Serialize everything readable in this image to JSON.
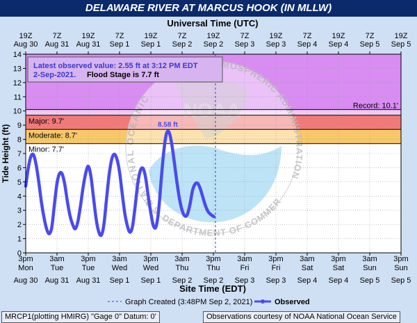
{
  "title": "DELAWARE RIVER AT MARCUS HOOK (IN MLLW)",
  "top_axis_title": "Universal Time (UTC)",
  "bottom_axis_title": "Site Time (EDT)",
  "ylabel": "Tide Height (ft)",
  "info_box": {
    "observed_line": "Latest observed value: 2.55 ft at 3:12 PM EDT",
    "date": "2-Sep-2021.",
    "flood_stage": "Flood Stage is 7.7 ft"
  },
  "legend": {
    "graph_created": "Graph Created (3:48PM Sep 2, 2021)",
    "observed": "Observed"
  },
  "footer": {
    "left": "MRCP1(plotting HMIRG) \"Gage 0\" Datum: 0'",
    "right": "Observations courtesy of NOAA National Ocean Service"
  },
  "watermark": {
    "left_arc": "NATIONAL OCEANIC",
    "right_arc": "ATMOSPHERIC ADMINISTRATION",
    "bottom_arc": "U.S. DEPARTMENT OF COMMERCE",
    "logo": "NOAA"
  },
  "colors": {
    "record": "#d98cf2",
    "major": "#f2c9f2",
    "moderate": "#f07a7a",
    "minor": "#f7c86a",
    "observed": "#4a4af0",
    "background": "#cfe0f5",
    "plot_bg": "#ffffff"
  },
  "chart_data": {
    "type": "line",
    "ylim": [
      0,
      14
    ],
    "yticks": [
      0,
      1,
      2,
      3,
      4,
      5,
      6,
      7,
      8,
      9,
      10,
      11,
      12,
      13,
      14
    ],
    "x_range_hours_labels": "Aug 30 3pm EDT to Sep 5 3pm EDT",
    "bottom_ticks": [
      [
        "3pm",
        "Mon",
        "Aug 30"
      ],
      [
        "3am",
        "Tue",
        "Aug 31"
      ],
      [
        "3pm",
        "Tue",
        "Aug 31"
      ],
      [
        "3am",
        "Wed",
        "Sep 1"
      ],
      [
        "3pm",
        "Wed",
        "Sep 1"
      ],
      [
        "3am",
        "Thu",
        "Sep 2"
      ],
      [
        "3pm",
        "Thu",
        "Sep 2"
      ],
      [
        "3am",
        "Fri",
        "Sep 3"
      ],
      [
        "3pm",
        "Fri",
        "Sep 3"
      ],
      [
        "3am",
        "Sat",
        "Sep 4"
      ],
      [
        "3pm",
        "Sat",
        "Sep 4"
      ],
      [
        "3am",
        "Sun",
        "Sep 5"
      ],
      [
        "3pm",
        "Sun",
        "Sep 5"
      ]
    ],
    "top_ticks": [
      [
        "19Z",
        "Aug 30"
      ],
      [
        "7Z",
        "Aug 31"
      ],
      [
        "19Z",
        "Aug 31"
      ],
      [
        "7Z",
        "Sep 1"
      ],
      [
        "19Z",
        "Sep 1"
      ],
      [
        "7Z",
        "Sep 2"
      ],
      [
        "19Z",
        "Sep 2"
      ],
      [
        "7Z",
        "Sep 3"
      ],
      [
        "19Z",
        "Sep 3"
      ],
      [
        "7Z",
        "Sep 4"
      ],
      [
        "19Z",
        "Sep 4"
      ],
      [
        "7Z",
        "Sep 5"
      ],
      [
        "19Z",
        "Sep 5"
      ]
    ],
    "thresholds": [
      {
        "label": "Major: 9.7'",
        "value": 9.7
      },
      {
        "label": "Moderate: 8.7'",
        "value": 8.7
      },
      {
        "label": "Minor: 7.7'",
        "value": 7.7
      },
      {
        "label": "Record: 10.1'",
        "value": 10.1
      }
    ],
    "peak_label": "8.58 ft",
    "peak": {
      "x": "2021-09-01 21:30",
      "y": 8.58
    },
    "graph_created": "2021-09-02 15:48",
    "series": [
      {
        "name": "Observed",
        "points": [
          [
            "2021-08-30 15:00",
            4.7
          ],
          [
            "2021-08-30 16:00",
            6.0
          ],
          [
            "2021-08-30 17:00",
            6.8
          ],
          [
            "2021-08-30 18:00",
            6.9
          ],
          [
            "2021-08-30 19:00",
            6.2
          ],
          [
            "2021-08-30 20:00",
            5.0
          ],
          [
            "2021-08-30 21:00",
            3.6
          ],
          [
            "2021-08-30 22:00",
            2.5
          ],
          [
            "2021-08-30 23:00",
            1.7
          ],
          [
            "2021-08-31 00:00",
            1.35
          ],
          [
            "2021-08-31 01:00",
            1.8
          ],
          [
            "2021-08-31 02:00",
            3.4
          ],
          [
            "2021-08-31 03:00",
            4.9
          ],
          [
            "2021-08-31 04:00",
            5.6
          ],
          [
            "2021-08-31 05:00",
            5.55
          ],
          [
            "2021-08-31 06:00",
            4.8
          ],
          [
            "2021-08-31 07:00",
            3.6
          ],
          [
            "2021-08-31 08:00",
            2.6
          ],
          [
            "2021-08-31 09:00",
            2.0
          ],
          [
            "2021-08-31 10:00",
            1.7
          ],
          [
            "2021-08-31 11:00",
            2.2
          ],
          [
            "2021-08-31 12:00",
            3.3
          ],
          [
            "2021-08-31 13:00",
            4.6
          ],
          [
            "2021-08-31 14:00",
            5.6
          ],
          [
            "2021-08-31 15:00",
            6.1
          ],
          [
            "2021-08-31 16:00",
            5.4
          ],
          [
            "2021-08-31 17:00",
            3.9
          ],
          [
            "2021-08-31 18:00",
            2.4
          ],
          [
            "2021-08-31 19:00",
            1.5
          ],
          [
            "2021-08-31 20:00",
            1.25
          ],
          [
            "2021-08-31 21:00",
            2.0
          ],
          [
            "2021-08-31 22:00",
            3.8
          ],
          [
            "2021-08-31 23:00",
            5.5
          ],
          [
            "2021-09-01 00:00",
            6.6
          ],
          [
            "2021-09-01 01:00",
            6.95
          ],
          [
            "2021-09-01 02:00",
            6.6
          ],
          [
            "2021-09-01 03:00",
            5.7
          ],
          [
            "2021-09-01 04:00",
            4.2
          ],
          [
            "2021-09-01 05:00",
            2.8
          ],
          [
            "2021-09-01 06:00",
            1.9
          ],
          [
            "2021-09-01 07:00",
            1.45
          ],
          [
            "2021-09-01 08:00",
            1.9
          ],
          [
            "2021-09-01 09:00",
            3.3
          ],
          [
            "2021-09-01 10:00",
            4.9
          ],
          [
            "2021-09-01 11:00",
            5.8
          ],
          [
            "2021-09-01 12:00",
            5.95
          ],
          [
            "2021-09-01 13:00",
            5.3
          ],
          [
            "2021-09-01 14:00",
            4.0
          ],
          [
            "2021-09-01 15:00",
            2.8
          ],
          [
            "2021-09-01 16:00",
            1.9
          ],
          [
            "2021-09-01 17:00",
            1.85
          ],
          [
            "2021-09-01 18:00",
            3.0
          ],
          [
            "2021-09-01 19:00",
            5.2
          ],
          [
            "2021-09-01 20:00",
            7.2
          ],
          [
            "2021-09-01 21:00",
            8.4
          ],
          [
            "2021-09-01 22:00",
            8.5
          ],
          [
            "2021-09-01 23:00",
            7.7
          ],
          [
            "2021-09-02 00:00",
            6.4
          ],
          [
            "2021-09-02 01:00",
            5.0
          ],
          [
            "2021-09-02 02:00",
            3.8
          ],
          [
            "2021-09-02 03:00",
            3.0
          ],
          [
            "2021-09-02 04:00",
            2.6
          ],
          [
            "2021-09-02 05:00",
            2.7
          ],
          [
            "2021-09-02 06:00",
            3.4
          ],
          [
            "2021-09-02 07:00",
            4.4
          ],
          [
            "2021-09-02 08:00",
            4.85
          ],
          [
            "2021-09-02 09:00",
            4.9
          ],
          [
            "2021-09-02 10:00",
            4.5
          ],
          [
            "2021-09-02 11:00",
            3.9
          ],
          [
            "2021-09-02 12:00",
            3.3
          ],
          [
            "2021-09-02 13:00",
            2.9
          ],
          [
            "2021-09-02 14:00",
            2.7
          ],
          [
            "2021-09-02 15:12",
            2.55
          ]
        ]
      }
    ]
  }
}
